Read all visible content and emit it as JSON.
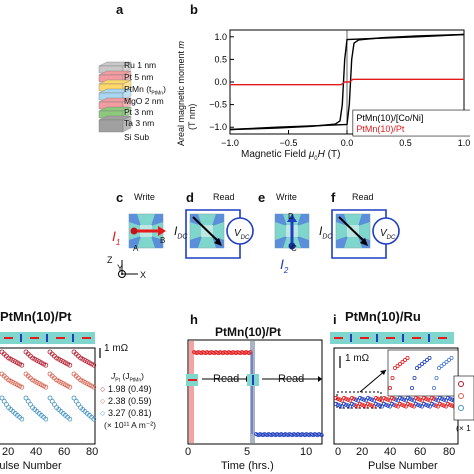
{
  "panels": {
    "a": "a",
    "b": "b",
    "c": "c",
    "d": "d",
    "e": "e",
    "f": "f",
    "h": "h",
    "i": "i"
  },
  "stack": {
    "layers": [
      {
        "label": "Ru 1 nm",
        "color": "#c8c8c8"
      },
      {
        "label": "Pt 5 nm",
        "color": "#f29ba0"
      },
      {
        "label": "PtMn (t",
        "sub": "PtMn",
        "suffix": ")",
        "color": "#ffd86a"
      },
      {
        "label": "MgO 2 nm",
        "color": "#a9d6f0"
      },
      {
        "label": "Pt 3 nm",
        "color": "#f29ba0"
      },
      {
        "label": "Ta 3 nm",
        "color": "#8cc97d"
      },
      {
        "label": "Si Sub",
        "color": "#a0a0a0"
      }
    ]
  },
  "chart_b": {
    "ylabel_line1": "Areal magnetic moment",
    "ylabel_m": "m",
    "ylabel_line2": "(T nm)",
    "xlabel_prefix": "Magnetic Field",
    "xlabel_mu": "μ",
    "xlabel_sub": "0",
    "xlabel_H": "H",
    "xlabel_unit": "(T)",
    "legend": [
      "PtMn(10)/[Co/Ni]",
      "PtMn(10)/Pt"
    ],
    "xticks": [
      "−1.0",
      "−0.5",
      "0.0",
      "0.5",
      "1.0"
    ],
    "yticks": [
      "1.0",
      "0.5",
      "0.0",
      "−0.5",
      "−1.0"
    ]
  },
  "chart_data": [
    {
      "type": "line",
      "xlabel": "Magnetic Field μ0H (T)",
      "ylabel": "Areal magnetic moment m (T nm)",
      "xlim": [
        -1.0,
        1.0
      ],
      "ylim": [
        -1.15,
        1.15
      ],
      "series": [
        {
          "name": "PtMn(10)/[Co/Ni]",
          "color": "#000000",
          "branch_up": {
            "x": [
              -1.0,
              -0.6,
              -0.2,
              0.0,
              0.02,
              0.04,
              0.06,
              0.1,
              0.3,
              0.6,
              1.0
            ],
            "y": [
              -1.05,
              -1.0,
              -0.96,
              -0.94,
              -0.5,
              0.5,
              0.86,
              0.93,
              0.98,
              1.02,
              1.05
            ]
          },
          "branch_down": {
            "x": [
              1.0,
              0.6,
              0.2,
              0.0,
              -0.02,
              -0.04,
              -0.06,
              -0.1,
              -0.3,
              -0.6,
              -1.0
            ],
            "y": [
              1.05,
              1.0,
              0.96,
              0.94,
              0.5,
              -0.5,
              -0.86,
              -0.93,
              -0.98,
              -1.02,
              -1.05
            ]
          }
        },
        {
          "name": "PtMn(10)/Pt",
          "color": "#e41a1c",
          "x": [
            -1.0,
            -0.05,
            -0.02,
            0.02,
            0.05,
            1.0
          ],
          "y": [
            -0.06,
            -0.06,
            0.0,
            0.0,
            0.06,
            0.06
          ]
        }
      ]
    },
    {
      "type": "scatter",
      "title": "PtMn(10)/Pt",
      "xlabel": "Pulse Number",
      "xlim": [
        0,
        80
      ],
      "scale_bar": "1 mΩ",
      "series": [
        {
          "name": "1.98 (0.49)",
          "color": "#b2182b"
        },
        {
          "name": "2.38 (0.59)",
          "color": "#d6604d"
        },
        {
          "name": "3.27 (0.81)",
          "color": "#4393c3"
        }
      ],
      "legend_header": [
        "J",
        "Pt",
        "(J",
        "PtMn",
        ")"
      ],
      "legend_note": "(× 10¹¹ A m⁻²)"
    },
    {
      "type": "scatter",
      "title": "PtMn(10)/Pt",
      "xlabel": "Time (hrs.)",
      "xlim": [
        0,
        10
      ],
      "annotations": [
        "Read",
        "Read"
      ]
    },
    {
      "type": "scatter",
      "title": "PtMn(10)/Ru",
      "xlabel": "Pulse Number",
      "xlim": [
        0,
        80
      ],
      "scale_bar": "1 mΩ"
    }
  ],
  "devices": {
    "write": "Write",
    "read": "Read",
    "i1": "I",
    "i1_sub": "1",
    "i2": "I",
    "i2_sub": "2",
    "idc": "I",
    "idc_sub": "DC",
    "vdc": "V",
    "vdc_sub": "DC",
    "A": "A",
    "B": "B",
    "C": "C",
    "D": "D",
    "axis_z": "Z",
    "axis_y": "Y",
    "axis_x": "X"
  },
  "panel_g": {
    "title": "PtMn(10)/Pt",
    "scale": "1 mΩ",
    "legend_rows": [
      "1.98 (0.49)",
      "2.38 (0.59)",
      "3.27 (0.81)"
    ],
    "xlabel": "Pulse Number",
    "xticks": [
      "20",
      "40",
      "60",
      "80"
    ]
  },
  "panel_h": {
    "title": "PtMn(10)/Pt",
    "read": "Read",
    "xlabel": "Time (hrs.)",
    "xticks": [
      "0",
      "5",
      "10"
    ]
  },
  "panel_i": {
    "title": "PtMn(10)/Ru",
    "scale": "1 mΩ",
    "xlabel": "Pulse Number",
    "xticks": [
      "0",
      "20",
      "40",
      "60",
      "80"
    ],
    "legend_note": "(× 1"
  },
  "colors": {
    "red": "#e41a1c",
    "blue": "#1f3fbf",
    "teal": "#7fd6cc"
  }
}
